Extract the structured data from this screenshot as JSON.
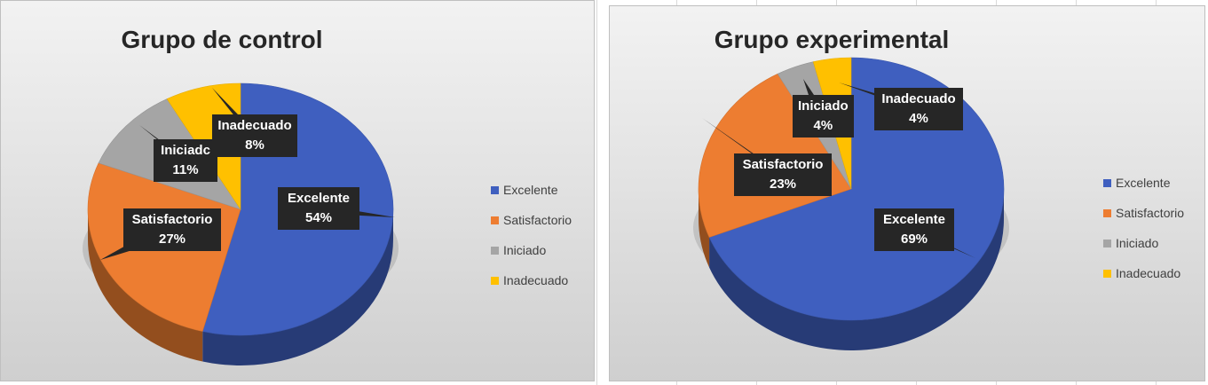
{
  "chart_data": [
    {
      "type": "pie",
      "title": "Grupo de control",
      "categories": [
        "Excelente",
        "Satisfactorio",
        "Iniciado",
        "Inadecuado"
      ],
      "values": [
        54,
        27,
        11,
        8
      ],
      "data_labels": [
        "54%",
        "27%",
        "11%",
        "8%"
      ],
      "legend": "right",
      "colors": [
        "#3f5fbf",
        "#ed7d31",
        "#a5a5a5",
        "#ffc000"
      ]
    },
    {
      "type": "pie",
      "title": "Grupo experimental",
      "categories": [
        "Excelente",
        "Satisfactorio",
        "Iniciado",
        "Inadecuado"
      ],
      "values": [
        69,
        23,
        4,
        4
      ],
      "data_labels": [
        "69%",
        "23%",
        "4%",
        "4%"
      ],
      "legend": "right",
      "colors": [
        "#3f5fbf",
        "#ed7d31",
        "#a5a5a5",
        "#ffc000"
      ]
    }
  ],
  "callout_names": [
    "Excelente",
    "Satisfactorio",
    "Iniciado",
    "Inadecuado"
  ],
  "callout_names_b": [
    "Excelente",
    "Satisfactorio",
    "Iniciado",
    "Inadecuado"
  ]
}
